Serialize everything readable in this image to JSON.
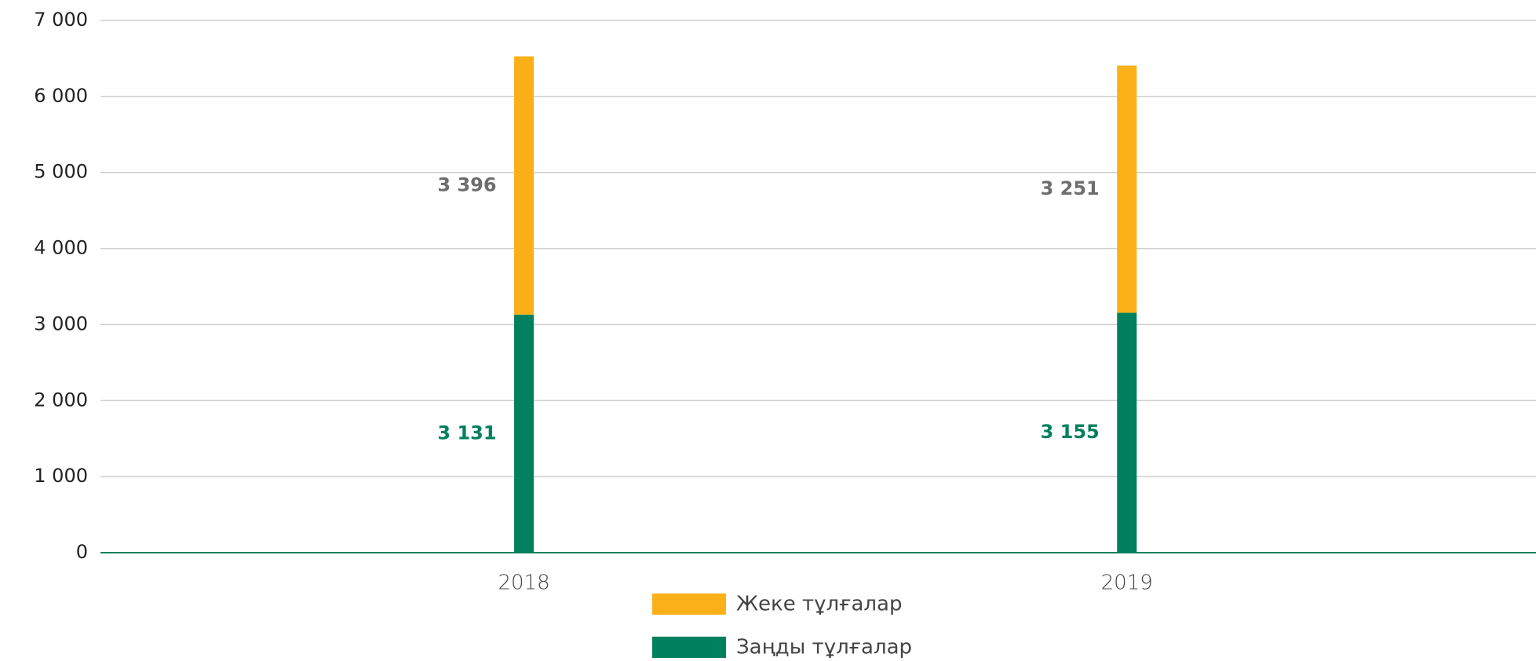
{
  "chart_data": {
    "type": "stacked-bar",
    "categories": [
      "2018",
      "2019"
    ],
    "series": [
      {
        "name": "Заңды тұлғалар",
        "color": "#00805e",
        "values": [
          3131,
          3155
        ],
        "value_labels": [
          "3 131",
          "3 155"
        ],
        "label_color": "#00805e"
      },
      {
        "name": "Жеке тұлғалар",
        "color": "#fbb017",
        "values": [
          3396,
          3251
        ],
        "value_labels": [
          "3 396",
          "3 251"
        ],
        "label_color": "#6d6d6d"
      }
    ],
    "ylim": [
      0,
      7000
    ],
    "yticks": [
      {
        "value": 0,
        "label": "0"
      },
      {
        "value": 1000,
        "label": "1 000"
      },
      {
        "value": 2000,
        "label": "2 000"
      },
      {
        "value": 3000,
        "label": "3 000"
      },
      {
        "value": 4000,
        "label": "4 000"
      },
      {
        "value": 5000,
        "label": "5 000"
      },
      {
        "value": 6000,
        "label": "6 000"
      },
      {
        "value": 7000,
        "label": "7 000"
      }
    ],
    "grid": true,
    "legend": "bottom"
  }
}
